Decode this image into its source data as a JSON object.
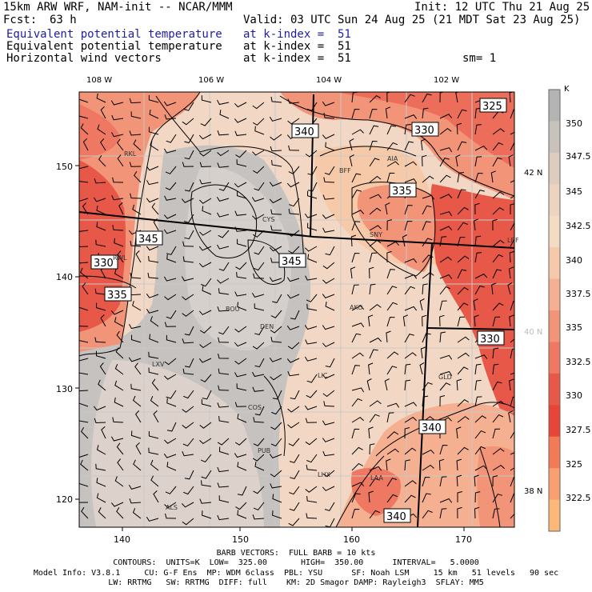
{
  "header": {
    "title_left": "15km ARW WRF, NAM-init -- NCAR/MMM",
    "init": "Init: 12 UTC Thu 21 Aug 25",
    "fcst_label": "Fcst:",
    "fcst_value": "63 h",
    "valid": "Valid: 03 UTC Sun 24 Aug 25 (21 MDT Sat 23 Aug 25)",
    "fields": [
      {
        "name": "Equivalent potential temperature",
        "level": "at k-index =  51"
      },
      {
        "name": "Equivalent potential temperature",
        "level": "at k-index =  51"
      },
      {
        "name": "Horizontal wind vectors",
        "level": "at k-index =  51"
      }
    ],
    "smoothing": "sm= 1"
  },
  "map": {
    "lon_labels": [
      "108 W",
      "106 W",
      "104 W",
      "102 W"
    ],
    "lat_labels": [
      "42 N",
      "40 N",
      "38 N"
    ],
    "x_ticks": [
      "140",
      "150",
      "160",
      "170"
    ],
    "y_ticks": [
      "150",
      "140",
      "130",
      "120"
    ],
    "contour_labels": [
      "325",
      "340",
      "330",
      "335",
      "345",
      "345",
      "330",
      "335",
      "330",
      "340",
      "340"
    ],
    "stations": [
      "RKL",
      "BFF",
      "AIA",
      "CYS",
      "SNY",
      "LBF",
      "RWL",
      "BOU",
      "AKO",
      "DEN",
      "LXV",
      "LIC",
      "GLD",
      "COS",
      "PUB",
      "LHX",
      "LAA",
      "ALS"
    ]
  },
  "colorbar": {
    "unit": "K",
    "ticks": [
      "350",
      "347.5",
      "345",
      "342.5",
      "340",
      "337.5",
      "335",
      "332.5",
      "330",
      "327.5",
      "325",
      "322.5"
    ],
    "colors": [
      "#b4b4b4",
      "#c8c2bc",
      "#dccdc0",
      "#ecd4c0",
      "#f4dcc4",
      "#f6c9aa",
      "#f4b090",
      "#f29478",
      "#ee7862",
      "#e85848",
      "#e84438",
      "#f27a55",
      "#f8a070",
      "#fcb878"
    ]
  },
  "footer": {
    "barb": "BARB VECTORS:  FULL BARB = 10 kts",
    "contours": "CONTOURS:  UNITS=K  LOW=  325.00       HIGH=  350.00      INTERVAL=   5.0000",
    "model_info": "Model Info: V3.8.1     CU: G-F Ens  MP: WDM 6class  PBL: YSU      SF: Noah LSM     15 km   51 levels   90 sec",
    "model_info2": "LW: RRTMG   SW: RRTMG  DIFF: full    KM: 2D Smagor DAMP: Rayleigh3  SFLAY: MM5"
  }
}
